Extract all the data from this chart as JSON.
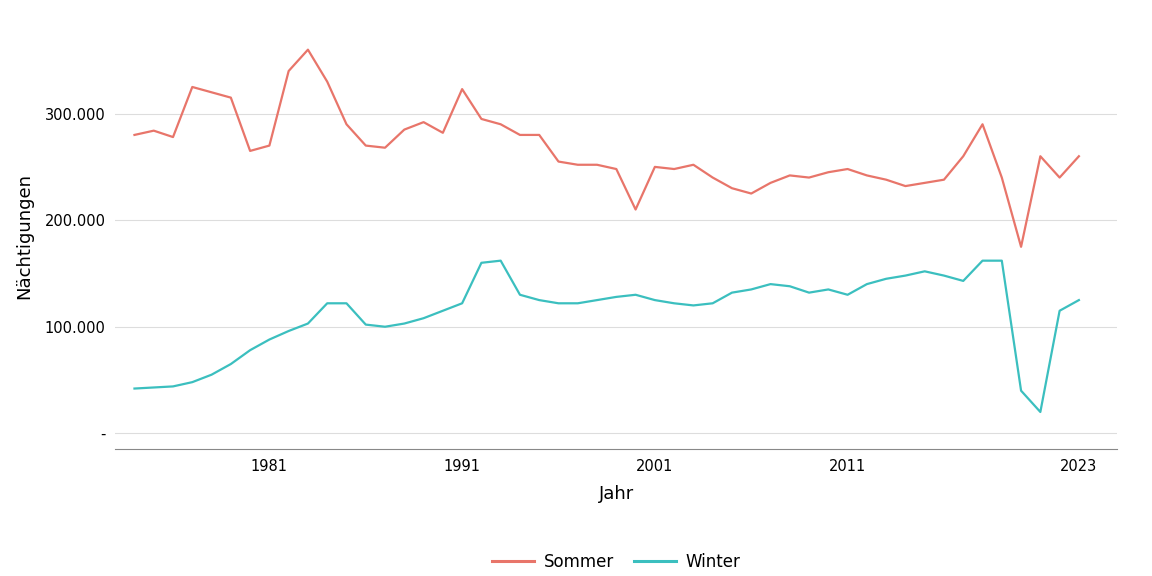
{
  "title": "",
  "xlabel": "Jahr",
  "ylabel": "Nächtigungen",
  "sommer_color": "#E8756A",
  "winter_color": "#3BBFBF",
  "legend_labels": [
    "Sommer",
    "Winter"
  ],
  "background_color": "#ffffff",
  "panel_background": "#ffffff",
  "grid_color": "#dddddd",
  "yticks": [
    0,
    100000,
    200000,
    300000
  ],
  "ytick_labels": [
    "-",
    "100.000",
    "200.000",
    "300.000"
  ],
  "xticks": [
    1981,
    1991,
    2001,
    2011,
    2023
  ],
  "xlim": [
    1973,
    2025
  ],
  "ylim": [
    -15000,
    385000
  ],
  "years": [
    1974,
    1975,
    1976,
    1977,
    1978,
    1979,
    1980,
    1981,
    1982,
    1983,
    1984,
    1985,
    1986,
    1987,
    1988,
    1989,
    1990,
    1991,
    1992,
    1993,
    1994,
    1995,
    1996,
    1997,
    1998,
    1999,
    2000,
    2001,
    2002,
    2003,
    2004,
    2005,
    2006,
    2007,
    2008,
    2009,
    2010,
    2011,
    2012,
    2013,
    2014,
    2015,
    2016,
    2017,
    2018,
    2019,
    2020,
    2021,
    2022,
    2023
  ],
  "sommer": [
    280000,
    284000,
    278000,
    325000,
    320000,
    315000,
    265000,
    270000,
    340000,
    360000,
    330000,
    290000,
    270000,
    268000,
    285000,
    292000,
    282000,
    323000,
    295000,
    290000,
    280000,
    280000,
    255000,
    252000,
    252000,
    248000,
    210000,
    250000,
    248000,
    252000,
    240000,
    230000,
    225000,
    235000,
    242000,
    240000,
    245000,
    248000,
    242000,
    238000,
    232000,
    235000,
    238000,
    260000,
    290000,
    240000,
    175000,
    260000,
    240000,
    260000
  ],
  "winter": [
    42000,
    43000,
    44000,
    48000,
    55000,
    65000,
    78000,
    88000,
    96000,
    103000,
    122000,
    122000,
    102000,
    100000,
    103000,
    108000,
    115000,
    122000,
    160000,
    162000,
    130000,
    125000,
    122000,
    122000,
    125000,
    128000,
    130000,
    125000,
    122000,
    120000,
    122000,
    132000,
    135000,
    140000,
    138000,
    132000,
    135000,
    130000,
    140000,
    145000,
    148000,
    152000,
    148000,
    143000,
    162000,
    162000,
    40000,
    20000,
    115000,
    125000
  ],
  "linewidth": 1.6,
  "tick_fontsize": 10.5,
  "label_fontsize": 13,
  "legend_fontsize": 12
}
